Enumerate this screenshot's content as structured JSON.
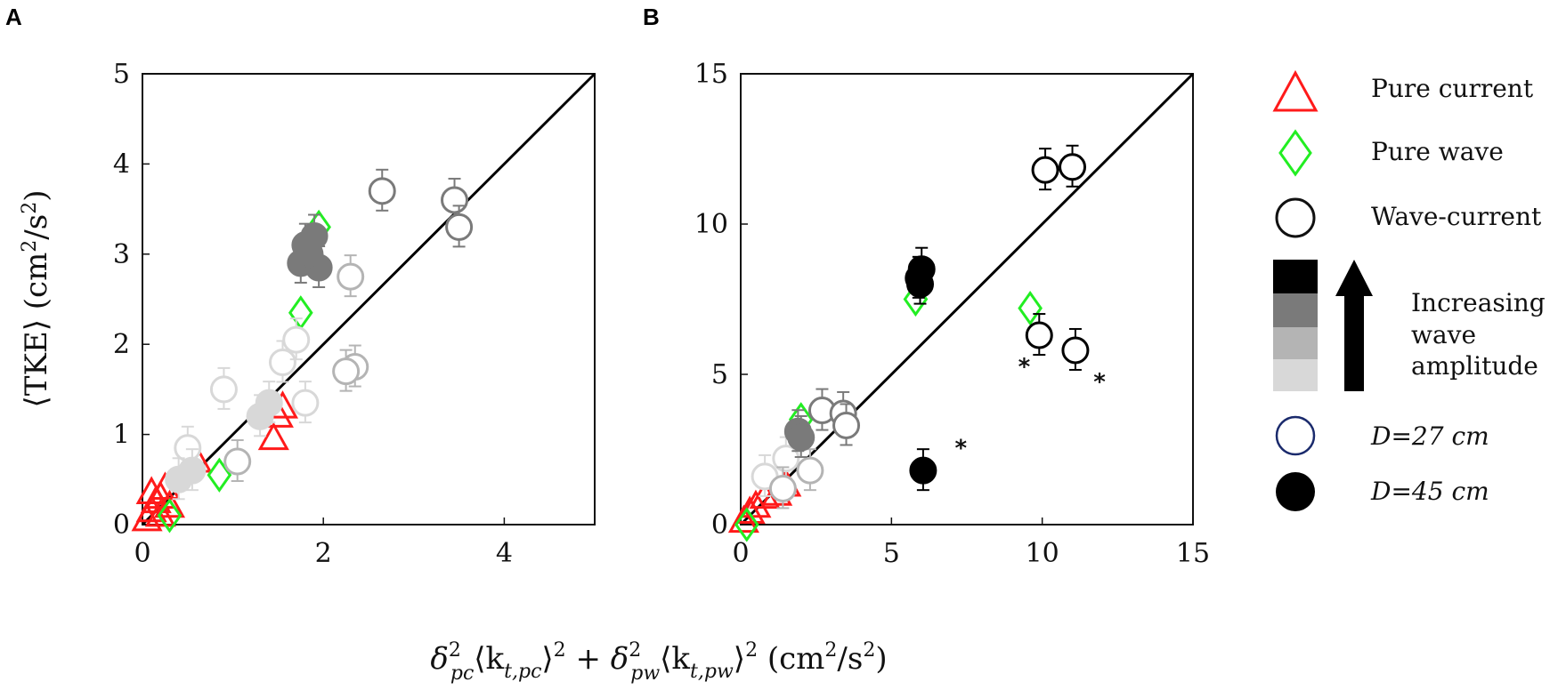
{
  "panel_labels": [
    "A",
    "B"
  ],
  "x_label_parts": [
    "δ",
    "2",
    "pc",
    "⟨k",
    "t,pc",
    "⟩",
    "2",
    " + δ",
    "2",
    "pw",
    "⟨k",
    "t,pw",
    "⟩",
    "2",
    " (cm",
    "2",
    "/s",
    "2",
    ")"
  ],
  "y_label_parts": [
    "⟨TKE⟩ (cm",
    "2",
    "/s",
    "2",
    ")"
  ],
  "legend": {
    "pure_current": "Pure current",
    "pure_wave": "Pure wave",
    "wave_current": "Wave-current",
    "increasing": [
      "Increasing",
      "wave",
      "amplitude"
    ],
    "d27": "D=27 cm",
    "d45": "D=45 cm"
  },
  "colors": {
    "pure_current": "#ff1a1a",
    "pure_wave": "#22ee22",
    "amp1": "#d8d8d8",
    "amp2": "#b4b4b4",
    "amp3": "#7a7a7a",
    "amp4": "#000000",
    "d27_edge": "#1a2a6c"
  },
  "chart_data": [
    {
      "type": "scatter",
      "panel": "A",
      "xlim": [
        0,
        5
      ],
      "ylim": [
        0,
        5
      ],
      "xticks": [
        0,
        2,
        4
      ],
      "yticks": [
        0,
        1,
        2,
        3,
        4,
        5
      ],
      "reference_line": [
        [
          0,
          0
        ],
        [
          5,
          5
        ]
      ],
      "series": [
        {
          "type": "pure_current",
          "points": [
            {
              "x": 0.05,
              "y": 0.05
            },
            {
              "x": 0.1,
              "y": 0.15
            },
            {
              "x": 0.15,
              "y": 0.25
            },
            {
              "x": 0.2,
              "y": 0.3
            },
            {
              "x": 0.25,
              "y": 0.4
            },
            {
              "x": 0.3,
              "y": 0.2
            },
            {
              "x": 0.1,
              "y": 0.35
            },
            {
              "x": 0.2,
              "y": 0.1
            },
            {
              "x": 0.6,
              "y": 0.7
            },
            {
              "x": 1.45,
              "y": 0.95
            },
            {
              "x": 1.5,
              "y": 1.2
            },
            {
              "x": 1.55,
              "y": 1.3
            }
          ]
        },
        {
          "type": "pure_wave",
          "points": [
            {
              "x": 0.3,
              "y": 0.1
            },
            {
              "x": 0.85,
              "y": 0.55
            },
            {
              "x": 1.75,
              "y": 2.35
            },
            {
              "x": 1.95,
              "y": 3.3
            }
          ]
        },
        {
          "type": "wave_current",
          "level": 1,
          "filled": false,
          "points": [
            {
              "x": 0.5,
              "y": 0.85
            },
            {
              "x": 0.9,
              "y": 1.5
            },
            {
              "x": 1.55,
              "y": 1.8
            },
            {
              "x": 1.7,
              "y": 2.05
            },
            {
              "x": 1.8,
              "y": 1.35
            }
          ]
        },
        {
          "type": "wave_current",
          "level": 2,
          "filled": false,
          "points": [
            {
              "x": 1.05,
              "y": 0.7
            },
            {
              "x": 2.3,
              "y": 2.75
            },
            {
              "x": 2.35,
              "y": 1.75
            },
            {
              "x": 2.25,
              "y": 1.7
            }
          ]
        },
        {
          "type": "wave_current",
          "level": 3,
          "filled": false,
          "points": [
            {
              "x": 2.65,
              "y": 3.7
            },
            {
              "x": 3.45,
              "y": 3.6
            },
            {
              "x": 3.5,
              "y": 3.3
            }
          ]
        },
        {
          "type": "wave_current",
          "level": 3,
          "filled": true,
          "points": [
            {
              "x": 1.8,
              "y": 3.1
            },
            {
              "x": 1.9,
              "y": 3.2
            },
            {
              "x": 1.75,
              "y": 2.9
            },
            {
              "x": 1.95,
              "y": 2.85
            },
            {
              "x": 1.85,
              "y": 3.0
            }
          ]
        },
        {
          "type": "wave_current",
          "level": 1,
          "filled": true,
          "points": [
            {
              "x": 0.4,
              "y": 0.5
            },
            {
              "x": 0.55,
              "y": 0.6
            },
            {
              "x": 1.3,
              "y": 1.2
            },
            {
              "x": 1.4,
              "y": 1.35
            }
          ]
        }
      ]
    },
    {
      "type": "scatter",
      "panel": "B",
      "xlim": [
        0,
        15
      ],
      "ylim": [
        0,
        15
      ],
      "xticks": [
        0,
        5,
        10,
        15
      ],
      "yticks": [
        0,
        5,
        10,
        15
      ],
      "reference_line": [
        [
          0,
          0
        ],
        [
          15,
          15
        ]
      ],
      "series": [
        {
          "type": "pure_current",
          "points": [
            {
              "x": 0.1,
              "y": 0.1
            },
            {
              "x": 0.3,
              "y": 0.4
            },
            {
              "x": 0.5,
              "y": 0.6
            },
            {
              "x": 0.8,
              "y": 0.9
            },
            {
              "x": 1.2,
              "y": 1.0
            },
            {
              "x": 1.5,
              "y": 1.3
            }
          ]
        },
        {
          "type": "pure_wave",
          "points": [
            {
              "x": 0.2,
              "y": 0.0
            },
            {
              "x": 2.0,
              "y": 3.5
            },
            {
              "x": 5.8,
              "y": 7.5
            },
            {
              "x": 9.6,
              "y": 7.2
            }
          ]
        },
        {
          "type": "wave_current",
          "level": 1,
          "filled": false,
          "points": [
            {
              "x": 0.8,
              "y": 1.6
            },
            {
              "x": 1.5,
              "y": 2.2
            }
          ]
        },
        {
          "type": "wave_current",
          "level": 2,
          "filled": false,
          "points": [
            {
              "x": 2.3,
              "y": 1.8
            },
            {
              "x": 1.4,
              "y": 1.2
            }
          ]
        },
        {
          "type": "wave_current",
          "level": 3,
          "filled": false,
          "points": [
            {
              "x": 2.7,
              "y": 3.8
            },
            {
              "x": 3.4,
              "y": 3.7
            },
            {
              "x": 3.5,
              "y": 3.3
            }
          ]
        },
        {
          "type": "wave_current",
          "level": 3,
          "filled": true,
          "points": [
            {
              "x": 1.9,
              "y": 3.1
            },
            {
              "x": 2.0,
              "y": 2.9
            }
          ]
        },
        {
          "type": "wave_current",
          "level": 4,
          "filled": false,
          "points": [
            {
              "x": 10.1,
              "y": 11.8
            },
            {
              "x": 11.0,
              "y": 11.9
            },
            {
              "x": 9.9,
              "y": 6.3
            },
            {
              "x": 11.1,
              "y": 5.8
            }
          ]
        },
        {
          "type": "wave_current",
          "level": 4,
          "filled": true,
          "points": [
            {
              "x": 5.9,
              "y": 8.2
            },
            {
              "x": 6.0,
              "y": 8.5
            },
            {
              "x": 5.95,
              "y": 8.0
            },
            {
              "x": 6.05,
              "y": 1.8
            }
          ]
        }
      ],
      "annotations": [
        {
          "text": "*",
          "x": 7.1,
          "y": 2.3
        },
        {
          "text": "*",
          "x": 9.2,
          "y": 5.0
        },
        {
          "text": "*",
          "x": 11.7,
          "y": 4.5
        }
      ]
    }
  ]
}
